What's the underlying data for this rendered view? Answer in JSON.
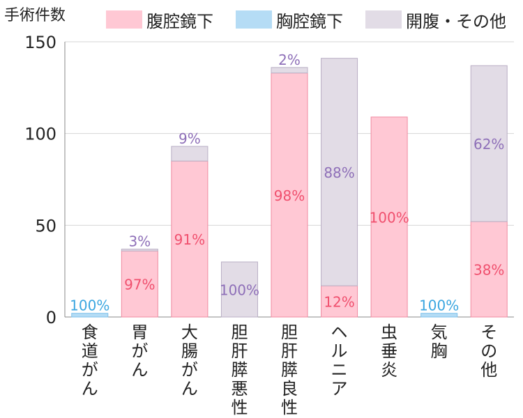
{
  "chart_data": {
    "type": "bar",
    "stacked": true,
    "ylabel": "手術件数",
    "ylim": [
      0,
      150
    ],
    "yticks": [
      0,
      50,
      100,
      150
    ],
    "grid": true,
    "legend_position": "top",
    "categories": [
      "食道がん",
      "胃がん",
      "大腸がん",
      "胆肝膵悪性",
      "胆肝膵良性",
      "ヘルニア",
      "虫垂炎",
      "気胸",
      "その他"
    ],
    "series": [
      {
        "name": "腹腔鏡下",
        "color": "#ffc8d4",
        "stroke": "#f08aa0",
        "label_color": "#f0506e",
        "values": [
          0,
          36,
          85,
          0,
          133,
          17,
          109,
          0,
          52
        ],
        "labels": [
          "",
          "97%",
          "91%",
          "",
          "98%",
          "12%",
          "100%",
          "",
          "38%"
        ]
      },
      {
        "name": "胸腔鏡下",
        "color": "#b5dcf5",
        "stroke": "#7cc0ea",
        "label_color": "#3aa6e0",
        "values": [
          2,
          0,
          0,
          0,
          0,
          0,
          0,
          2,
          0
        ],
        "labels": [
          "100%",
          "",
          "",
          "",
          "",
          "",
          "",
          "100%",
          ""
        ]
      },
      {
        "name": "開腹・その他",
        "color": "#e2dce6",
        "stroke": "#b9aec4",
        "label_color": "#8e6fb8",
        "values": [
          0,
          1,
          8,
          30,
          3,
          124,
          0,
          0,
          85
        ],
        "labels": [
          "",
          "3%",
          "9%",
          "100%",
          "2%",
          "88%",
          "",
          "",
          "62%"
        ]
      }
    ]
  }
}
